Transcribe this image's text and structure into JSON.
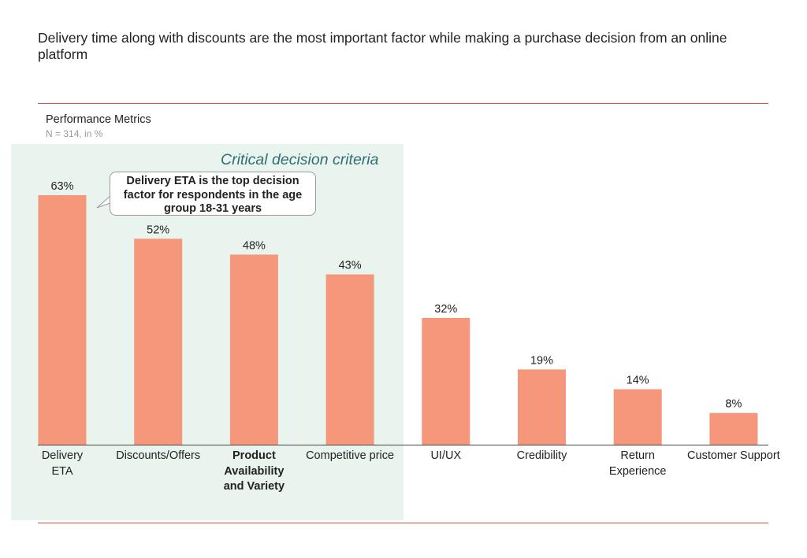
{
  "headline": "Delivery time along with discounts are the most important factor while making a purchase decision from an online platform",
  "metric": {
    "title": "Performance Metrics",
    "subtitle": "N = 314, in %"
  },
  "highlight": {
    "label": "Critical decision criteria"
  },
  "callout": {
    "text": "Delivery ETA is the top decision factor for respondents in the age group 18-31 years"
  },
  "colors": {
    "bar": "#f4977a",
    "rule": "#e0523f",
    "highlight_bg": "#eaf4ee",
    "highlight_text": "#2f6f74"
  },
  "chart_data": {
    "type": "bar",
    "title": "Performance Metrics",
    "subtitle": "N = 314, in %",
    "categories": [
      "Delivery ETA",
      "Discounts/Offers",
      "Product Availability and Variety",
      "Competitive price",
      "UI/UX",
      "Credibility",
      "Return Experience",
      "Customer Support"
    ],
    "values": [
      63,
      52,
      48,
      43,
      32,
      19,
      14,
      8
    ],
    "value_labels": [
      "63%",
      "52%",
      "48%",
      "43%",
      "32%",
      "19%",
      "14%",
      "8%"
    ],
    "ylim": [
      0,
      63
    ],
    "grid": false,
    "legend": "none"
  }
}
